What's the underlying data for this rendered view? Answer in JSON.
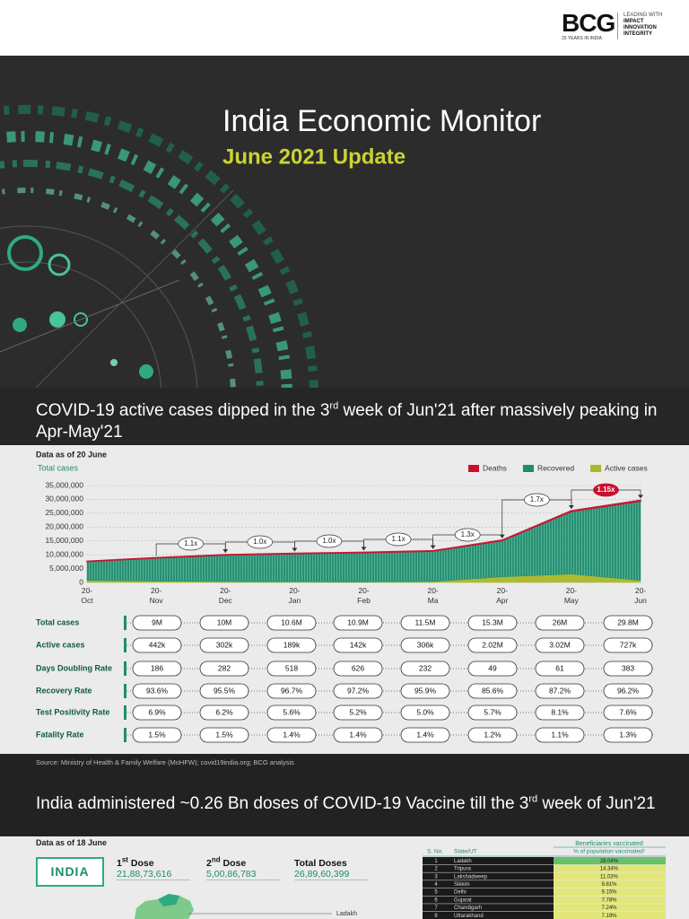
{
  "header": {
    "logo": "BCG",
    "tagline": "25 YEARS IN INDIA",
    "leading": "LEADING WITH",
    "pillars": [
      "IMPACT",
      "INNOVATION",
      "INTEGRITY"
    ]
  },
  "hero": {
    "title": "India Economic Monitor",
    "subtitle": "June 2021 Update"
  },
  "covid_section": {
    "heading": [
      {
        "text": "COVID-19 active cases dipped in the 3"
      },
      {
        "text": "rd",
        "sup": true
      },
      {
        "text": " week of Jun'21 after massively peaking in Apr-May'21"
      }
    ],
    "data_note": "Data as of 20 June",
    "table": {
      "rows": [
        {
          "label": "Total cases",
          "cells": [
            "9M",
            "10M",
            "10.6M",
            "10.9M",
            "11.5M",
            "15.3M",
            "26M",
            "29.8M"
          ]
        },
        {
          "label": "Active cases",
          "cells": [
            "442k",
            "302k",
            "189k",
            "142k",
            "306k",
            "2.02M",
            "3.02M",
            "727k"
          ]
        },
        {
          "label": "Days Doubling Rate",
          "cells": [
            "186",
            "282",
            "518",
            "626",
            "232",
            "49",
            "61",
            "383"
          ]
        },
        {
          "label": "Recovery Rate",
          "cells": [
            "93.6%",
            "95.5%",
            "96.7%",
            "97.2%",
            "95.9%",
            "85.6%",
            "87.2%",
            "96.2%"
          ]
        },
        {
          "label": "Test Positivity Rate",
          "cells": [
            "6.9%",
            "6.2%",
            "5.6%",
            "5.2%",
            "5.0%",
            "5.7%",
            "8.1%",
            "7.6%"
          ]
        },
        {
          "label": "Fatality Rate",
          "cells": [
            "1.5%",
            "1.5%",
            "1.4%",
            "1.4%",
            "1.4%",
            "1.2%",
            "1.1%",
            "1.3%"
          ]
        }
      ]
    },
    "source": "Source: Ministry of Health & Family Welfare (MoHFW); covid19india.org; BCG analysis"
  },
  "chart_data": {
    "type": "stacked-area",
    "y_label": "Total cases",
    "category_prefix": "20-",
    "categories": [
      "Oct",
      "Nov",
      "Dec",
      "Jan",
      "Feb",
      "Ma",
      "Apr",
      "May",
      "Jun"
    ],
    "series": [
      {
        "name": "Deaths",
        "color": "#c8102e",
        "values": [
          110000,
          130000,
          145000,
          153000,
          156000,
          159000,
          180000,
          290000,
          380000
        ]
      },
      {
        "name": "Recovered",
        "color": "#1e8c6e",
        "values": [
          6800000,
          8400000,
          9600000,
          10200000,
          10600000,
          11000000,
          13100000,
          22600000,
          28600000
        ]
      },
      {
        "name": "Active cases",
        "color": "#a9b92a",
        "values": [
          750000,
          442000,
          302000,
          189000,
          142000,
          306000,
          2020000,
          3020000,
          727000
        ]
      }
    ],
    "stack_order": [
      2,
      1,
      0
    ],
    "ylim": [
      0,
      35000000
    ],
    "yticks": [
      0,
      {
        "value": 5000000,
        "label": "5,000,000"
      },
      {
        "value": 10000000,
        "label": "10,000,000"
      },
      {
        "value": 15000000,
        "label": "15,000,000"
      },
      {
        "value": 20000000,
        "label": "20,000,000"
      },
      {
        "value": 25000000,
        "label": "25,000,000"
      },
      {
        "value": 30000000,
        "label": "30,000,000"
      },
      {
        "value": 35000000,
        "label": "35,000,000"
      }
    ],
    "grid": true,
    "legend": "top-right",
    "annotations": [
      {
        "text": "1.1x"
      },
      {
        "text": "1.0x"
      },
      {
        "text": "1.0x"
      },
      {
        "text": "1.1x"
      },
      {
        "text": "1.3x"
      },
      {
        "text": "1.7x"
      },
      {
        "text": "1.15x",
        "highlight": "#c8102e"
      }
    ]
  },
  "vaccine_section": {
    "heading": [
      {
        "text": "India administered ~0.26 Bn doses of COVID-19 Vaccine till the 3"
      },
      {
        "text": "rd",
        "sup": true
      },
      {
        "text": " week of Jun'21"
      }
    ],
    "data_note": "Data as of 18 June",
    "country": "INDIA",
    "doses": [
      {
        "label": [
          {
            "text": "1"
          },
          {
            "text": "st",
            "sup": true
          },
          {
            "text": " Dose"
          }
        ],
        "value": "21,88,73,616"
      },
      {
        "label": [
          {
            "text": "2"
          },
          {
            "text": "nd",
            "sup": true
          },
          {
            "text": " Dose"
          }
        ],
        "value": "5,00,86,783"
      },
      {
        "label": [
          {
            "text": "Total Doses"
          }
        ],
        "value": "26,89,60,399"
      }
    ],
    "map_label": "Ladakh",
    "state_table": {
      "group_header": "Beneficiaries vaccinated",
      "columns": [
        "S. No.",
        "State/UT",
        "% of population vaccinated¹"
      ],
      "rows": [
        [
          "1",
          "Ladakh",
          "28.04%"
        ],
        [
          "2",
          "Tripura",
          "14.34%"
        ],
        [
          "3",
          "Lakshadweep",
          "11.03%"
        ],
        [
          "4",
          "Sikkim",
          "9.81%"
        ],
        [
          "5",
          "Delhi",
          "9.15%"
        ],
        [
          "6",
          "Gujarat",
          "7.78%"
        ],
        [
          "7",
          "Chandigarh",
          "7.24%"
        ],
        [
          "8",
          "Uttarakhand",
          "7.19%"
        ]
      ]
    }
  }
}
